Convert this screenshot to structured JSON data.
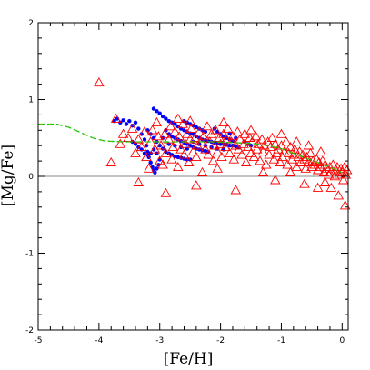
{
  "chart_data": {
    "type": "scatter",
    "xlabel": "[Fe/H]",
    "ylabel": "[Mg/Fe]",
    "xlim": [
      -5,
      0.1
    ],
    "ylim": [
      -2,
      2
    ],
    "xticks": [
      -5,
      -4,
      -3,
      -2,
      -1,
      0
    ],
    "yticks": [
      -2,
      -1,
      0,
      1,
      2
    ],
    "xtick_labels": [
      "-5",
      "-4",
      "-3",
      "-2",
      "-1",
      "0"
    ],
    "ytick_labels": [
      "-2",
      "-1",
      "0",
      "1",
      "2"
    ],
    "zero_line": true,
    "colors": {
      "triangles": "#ff0000",
      "dots": "#0000ff",
      "model_line": "#00cc00",
      "model_line_overlay": "#c8a000",
      "axis": "#000000",
      "zero_line": "#888888"
    },
    "series": [
      {
        "marker": "triangle-open",
        "points": [
          [
            -4.0,
            1.22
          ],
          [
            -3.72,
            0.75
          ],
          [
            -3.65,
            0.42
          ],
          [
            -3.6,
            0.55
          ],
          [
            -3.52,
            0.5
          ],
          [
            -3.45,
            0.62
          ],
          [
            -3.4,
            0.3
          ],
          [
            -3.35,
            0.48
          ],
          [
            -3.3,
            0.38
          ],
          [
            -3.25,
            0.58
          ],
          [
            -3.22,
            0.25
          ],
          [
            -3.18,
            0.1
          ],
          [
            -3.15,
            0.45
          ],
          [
            -3.12,
            0.6
          ],
          [
            -3.08,
            0.35
          ],
          [
            -3.05,
            0.7
          ],
          [
            -3.02,
            0.52
          ],
          [
            -3.0,
            0.2
          ],
          [
            -2.98,
            0.4
          ],
          [
            -2.95,
            0.15
          ],
          [
            -2.92,
            0.55
          ],
          [
            -2.9,
            0.3
          ],
          [
            -2.85,
            0.48
          ],
          [
            -2.82,
            0.65
          ],
          [
            -2.8,
            0.22
          ],
          [
            -2.78,
            0.38
          ],
          [
            -2.75,
            0.58
          ],
          [
            -2.72,
            0.45
          ],
          [
            -2.7,
            0.12
          ],
          [
            -2.68,
            0.52
          ],
          [
            -2.65,
            0.35
          ],
          [
            -2.62,
            0.68
          ],
          [
            -2.6,
            0.28
          ],
          [
            -2.58,
            0.42
          ],
          [
            -2.55,
            0.55
          ],
          [
            -2.52,
            0.18
          ],
          [
            -2.5,
            0.48
          ],
          [
            -2.48,
            0.62
          ],
          [
            -2.45,
            0.32
          ],
          [
            -2.42,
            0.5
          ],
          [
            -2.4,
            0.25
          ],
          [
            -2.38,
            0.4
          ],
          [
            -2.35,
            0.58
          ],
          [
            -2.32,
            0.45
          ],
          [
            -2.3,
            0.05
          ],
          [
            -2.28,
            0.52
          ],
          [
            -2.25,
            0.35
          ],
          [
            -2.22,
            0.65
          ],
          [
            -2.2,
            0.28
          ],
          [
            -2.18,
            0.45
          ],
          [
            -2.15,
            0.55
          ],
          [
            -2.12,
            0.2
          ],
          [
            -2.1,
            0.4
          ],
          [
            -2.08,
            0.6
          ],
          [
            -2.05,
            0.32
          ],
          [
            -2.02,
            0.5
          ],
          [
            -2.0,
            0.42
          ],
          [
            -1.98,
            0.25
          ],
          [
            -1.95,
            0.55
          ],
          [
            -1.92,
            0.38
          ],
          [
            -1.9,
            0.48
          ],
          [
            -1.88,
            0.62
          ],
          [
            -1.85,
            0.3
          ],
          [
            -1.82,
            0.45
          ],
          [
            -1.8,
            0.52
          ],
          [
            -1.78,
            0.22
          ],
          [
            -1.75,
            0.4
          ],
          [
            -1.72,
            0.58
          ],
          [
            -1.7,
            0.35
          ],
          [
            -1.68,
            0.48
          ],
          [
            -1.65,
            0.28
          ],
          [
            -1.62,
            0.42
          ],
          [
            -1.6,
            0.55
          ],
          [
            -1.58,
            0.18
          ],
          [
            -1.55,
            0.38
          ],
          [
            -1.52,
            0.5
          ],
          [
            -1.5,
            0.3
          ],
          [
            -1.48,
            0.45
          ],
          [
            -1.45,
            0.25
          ],
          [
            -1.42,
            0.52
          ],
          [
            -1.4,
            0.35
          ],
          [
            -1.38,
            0.42
          ],
          [
            -1.35,
            0.2
          ],
          [
            -1.32,
            0.48
          ],
          [
            -1.3,
            0.32
          ],
          [
            -1.28,
            0.4
          ],
          [
            -1.25,
            0.15
          ],
          [
            -1.22,
            0.45
          ],
          [
            -1.2,
            0.28
          ],
          [
            -1.18,
            0.38
          ],
          [
            -1.15,
            0.5
          ],
          [
            -1.12,
            0.22
          ],
          [
            -1.1,
            0.42
          ],
          [
            -1.08,
            0.3
          ],
          [
            -1.05,
            0.35
          ],
          [
            -1.02,
            0.18
          ],
          [
            -1.0,
            0.4
          ],
          [
            -0.98,
            0.25
          ],
          [
            -0.95,
            0.32
          ],
          [
            -0.92,
            0.45
          ],
          [
            -0.9,
            0.15
          ],
          [
            -0.88,
            0.3
          ],
          [
            -0.85,
            0.38
          ],
          [
            -0.82,
            0.22
          ],
          [
            -0.8,
            0.28
          ],
          [
            -0.78,
            0.35
          ],
          [
            -0.75,
            0.12
          ],
          [
            -0.72,
            0.25
          ],
          [
            -0.7,
            0.32
          ],
          [
            -0.68,
            0.18
          ],
          [
            -0.65,
            0.28
          ],
          [
            -0.62,
            0.22
          ],
          [
            -0.6,
            0.1
          ],
          [
            -0.58,
            0.25
          ],
          [
            -0.55,
            0.18
          ],
          [
            -0.52,
            0.3
          ],
          [
            -0.5,
            0.12
          ],
          [
            -0.48,
            0.2
          ],
          [
            -0.45,
            0.15
          ],
          [
            -0.42,
            0.22
          ],
          [
            -0.4,
            0.08
          ],
          [
            -0.38,
            0.18
          ],
          [
            -0.35,
            0.12
          ],
          [
            -0.32,
            0.2
          ],
          [
            -0.3,
            0.05
          ],
          [
            -0.28,
            0.15
          ],
          [
            -0.25,
            0.1
          ],
          [
            -0.22,
            0.02
          ],
          [
            -0.2,
            0.12
          ],
          [
            -0.18,
            0.06
          ],
          [
            -0.15,
            0.15
          ],
          [
            -0.12,
            0.0
          ],
          [
            -0.1,
            0.08
          ],
          [
            -0.08,
            0.12
          ],
          [
            -0.05,
            0.02
          ],
          [
            -0.02,
            0.1
          ],
          [
            0.0,
            0.05
          ],
          [
            0.02,
            -0.05
          ],
          [
            0.04,
            0.12
          ],
          [
            0.06,
            0.02
          ],
          [
            0.08,
            0.08
          ],
          [
            -0.06,
            -0.25
          ],
          [
            0.05,
            -0.38
          ],
          [
            -0.4,
            -0.15
          ],
          [
            -1.75,
            -0.18
          ],
          [
            -2.9,
            -0.22
          ],
          [
            -3.35,
            -0.08
          ],
          [
            -1.1,
            -0.05
          ],
          [
            -0.62,
            -0.1
          ],
          [
            -2.4,
            -0.12
          ],
          [
            -3.8,
            0.18
          ],
          [
            -0.18,
            -0.15
          ],
          [
            -0.28,
            -0.08
          ],
          [
            -0.85,
            0.05
          ],
          [
            -1.3,
            0.05
          ],
          [
            -2.05,
            0.1
          ],
          [
            -0.35,
            0.32
          ],
          [
            -0.55,
            0.4
          ],
          [
            -0.75,
            0.45
          ],
          [
            -1.0,
            0.55
          ],
          [
            -1.5,
            0.6
          ],
          [
            -1.95,
            0.7
          ],
          [
            -2.5,
            0.72
          ],
          [
            -2.7,
            0.75
          ]
        ]
      },
      {
        "marker": "dot-filled",
        "points": [
          [
            -3.75,
            0.72
          ],
          [
            -3.7,
            0.75
          ],
          [
            -3.65,
            0.7
          ],
          [
            -3.6,
            0.73
          ],
          [
            -3.55,
            0.68
          ],
          [
            -3.5,
            0.72
          ],
          [
            -3.45,
            0.66
          ],
          [
            -3.4,
            0.7
          ],
          [
            -3.35,
            0.62
          ],
          [
            -3.3,
            0.55
          ],
          [
            -3.25,
            0.48
          ],
          [
            -3.22,
            0.4
          ],
          [
            -3.2,
            0.32
          ],
          [
            -3.18,
            0.25
          ],
          [
            -3.15,
            0.18
          ],
          [
            -3.12,
            0.12
          ],
          [
            -3.1,
            0.08
          ],
          [
            -3.08,
            0.05
          ],
          [
            -3.05,
            0.1
          ],
          [
            -3.02,
            0.15
          ],
          [
            -3.0,
            0.22
          ],
          [
            -3.1,
            0.88
          ],
          [
            -3.05,
            0.85
          ],
          [
            -3.0,
            0.82
          ],
          [
            -2.95,
            0.78
          ],
          [
            -2.9,
            0.75
          ],
          [
            -2.85,
            0.72
          ],
          [
            -2.8,
            0.7
          ],
          [
            -2.75,
            0.68
          ],
          [
            -2.7,
            0.65
          ],
          [
            -2.65,
            0.62
          ],
          [
            -2.6,
            0.6
          ],
          [
            -2.55,
            0.58
          ],
          [
            -2.5,
            0.56
          ],
          [
            -2.45,
            0.55
          ],
          [
            -2.4,
            0.52
          ],
          [
            -2.35,
            0.5
          ],
          [
            -2.3,
            0.48
          ],
          [
            -2.25,
            0.47
          ],
          [
            -2.2,
            0.46
          ],
          [
            -2.15,
            0.45
          ],
          [
            -2.1,
            0.44
          ],
          [
            -2.05,
            0.43
          ],
          [
            -2.0,
            0.42
          ],
          [
            -1.95,
            0.42
          ],
          [
            -1.9,
            0.41
          ],
          [
            -1.85,
            0.4
          ],
          [
            -1.8,
            0.4
          ],
          [
            -1.75,
            0.39
          ],
          [
            -1.7,
            0.38
          ],
          [
            -3.2,
            0.6
          ],
          [
            -3.15,
            0.55
          ],
          [
            -3.1,
            0.5
          ],
          [
            -3.05,
            0.45
          ],
          [
            -3.0,
            0.4
          ],
          [
            -2.95,
            0.36
          ],
          [
            -2.9,
            0.32
          ],
          [
            -2.85,
            0.3
          ],
          [
            -2.8,
            0.28
          ],
          [
            -2.75,
            0.26
          ],
          [
            -2.7,
            0.25
          ],
          [
            -2.65,
            0.24
          ],
          [
            -2.6,
            0.23
          ],
          [
            -2.55,
            0.22
          ],
          [
            -2.5,
            0.22
          ],
          [
            -2.9,
            0.6
          ],
          [
            -2.85,
            0.55
          ],
          [
            -2.8,
            0.52
          ],
          [
            -2.75,
            0.5
          ],
          [
            -2.7,
            0.48
          ],
          [
            -2.65,
            0.46
          ],
          [
            -2.6,
            0.44
          ],
          [
            -2.55,
            0.42
          ],
          [
            -2.5,
            0.4
          ],
          [
            -2.45,
            0.38
          ],
          [
            -2.4,
            0.36
          ],
          [
            -2.35,
            0.35
          ],
          [
            -2.3,
            0.34
          ],
          [
            -2.25,
            0.33
          ],
          [
            -2.2,
            0.32
          ],
          [
            -2.1,
            0.62
          ],
          [
            -2.05,
            0.58
          ],
          [
            -2.0,
            0.55
          ],
          [
            -1.95,
            0.52
          ],
          [
            -1.9,
            0.5
          ],
          [
            -1.85,
            0.48
          ],
          [
            -1.8,
            0.46
          ],
          [
            -2.6,
            0.72
          ],
          [
            -2.55,
            0.7
          ],
          [
            -2.5,
            0.68
          ],
          [
            -2.45,
            0.66
          ],
          [
            -2.4,
            0.64
          ],
          [
            -2.35,
            0.62
          ],
          [
            -2.3,
            0.6
          ],
          [
            -2.25,
            0.58
          ],
          [
            -3.45,
            0.45
          ],
          [
            -3.4,
            0.42
          ],
          [
            -3.35,
            0.38
          ],
          [
            -3.3,
            0.35
          ],
          [
            -3.25,
            0.3
          ],
          [
            -3.2,
            0.28
          ],
          [
            -3.15,
            0.3
          ],
          [
            -3.1,
            0.35
          ],
          [
            -3.05,
            0.3
          ],
          [
            -2.95,
            0.5
          ],
          [
            -2.85,
            0.42
          ],
          [
            -2.75,
            0.4
          ],
          [
            -2.65,
            0.38
          ],
          [
            -2.55,
            0.36
          ],
          [
            -2.45,
            0.45
          ],
          [
            -2.35,
            0.42
          ],
          [
            -2.25,
            0.4
          ],
          [
            -2.15,
            0.38
          ],
          [
            -2.05,
            0.36
          ],
          [
            -1.95,
            0.35
          ],
          [
            -1.6,
            0.45
          ],
          [
            -1.55,
            0.42
          ],
          [
            -1.5,
            0.4
          ],
          [
            -1.85,
            0.56
          ],
          [
            -1.75,
            0.5
          ]
        ]
      },
      {
        "marker": "line-dashed",
        "points": [
          [
            -5.0,
            0.68
          ],
          [
            -4.7,
            0.68
          ],
          [
            -4.5,
            0.64
          ],
          [
            -4.3,
            0.57
          ],
          [
            -4.1,
            0.5
          ],
          [
            -3.9,
            0.46
          ],
          [
            -3.6,
            0.45
          ],
          [
            -3.3,
            0.45
          ],
          [
            -3.0,
            0.45
          ],
          [
            -2.7,
            0.45
          ],
          [
            -2.4,
            0.45
          ],
          [
            -2.1,
            0.45
          ],
          [
            -1.8,
            0.44
          ],
          [
            -1.5,
            0.43
          ],
          [
            -1.2,
            0.4
          ],
          [
            -1.0,
            0.36
          ],
          [
            -0.8,
            0.3
          ],
          [
            -0.6,
            0.24
          ],
          [
            -0.4,
            0.18
          ],
          [
            -0.2,
            0.12
          ],
          [
            0.0,
            0.05
          ]
        ]
      }
    ]
  }
}
